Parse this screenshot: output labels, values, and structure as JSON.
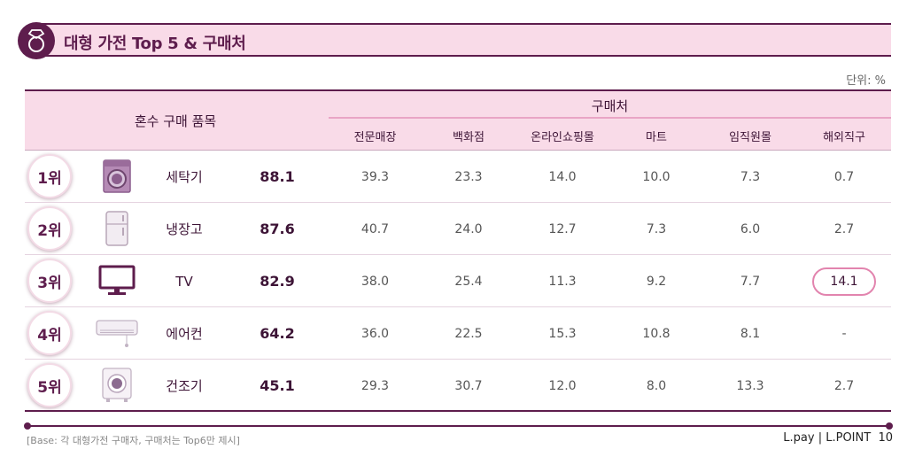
{
  "title": "대형 가전 Top 5 & 구매처",
  "unit": "단위: %",
  "table": {
    "left_header": "혼수 구매 품목",
    "group_header": "구매처",
    "columns": [
      "전문매장",
      "백화점",
      "온라인쇼핑몰",
      "마트",
      "임직원몰",
      "해외직구"
    ],
    "rows": [
      {
        "rank": "1위",
        "icon": "washer-icon",
        "item": "세탁기",
        "score": "88.1",
        "values": [
          "39.3",
          "23.3",
          "14.0",
          "10.0",
          "7.3",
          "0.7"
        ]
      },
      {
        "rank": "2위",
        "icon": "fridge-icon",
        "item": "냉장고",
        "score": "87.6",
        "values": [
          "40.7",
          "24.0",
          "12.7",
          "7.3",
          "6.0",
          "2.7"
        ]
      },
      {
        "rank": "3위",
        "icon": "tv-icon",
        "item": "TV",
        "score": "82.9",
        "values": [
          "38.0",
          "25.4",
          "11.3",
          "9.2",
          "7.7",
          "14.1"
        ]
      },
      {
        "rank": "4위",
        "icon": "air-conditioner-icon",
        "item": "에어컨",
        "score": "64.2",
        "values": [
          "36.0",
          "22.5",
          "15.3",
          "10.8",
          "8.1",
          "-"
        ]
      },
      {
        "rank": "5위",
        "icon": "dryer-icon",
        "item": "건조기",
        "score": "45.1",
        "values": [
          "29.3",
          "30.7",
          "12.0",
          "8.0",
          "13.3",
          "2.7"
        ]
      }
    ],
    "highlighted_cell": "3위 / 해외직구"
  },
  "footer": {
    "note": "[Base: 각 대형가전 구매자, 구매처는 Top6만 제시]",
    "brand": "L.pay | L.POINT",
    "page": "10"
  },
  "colors": {
    "accent": "#5e1d4d",
    "header_bg": "#f9dbe8",
    "highlight": "#e284ae"
  }
}
